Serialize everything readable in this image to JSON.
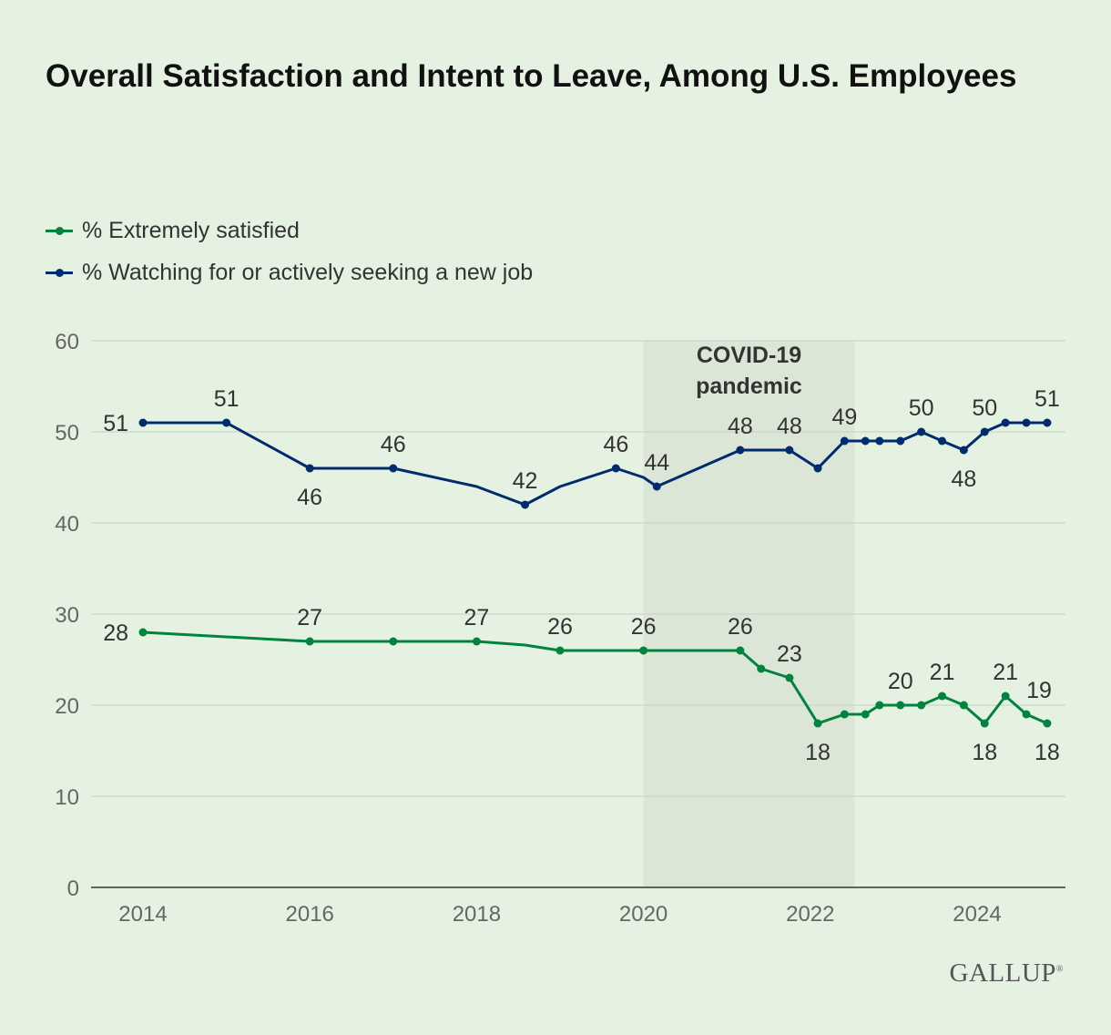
{
  "chart_data": {
    "type": "line",
    "title": "Overall Satisfaction and Intent to Leave, Among U.S. Employees",
    "xlabel": "",
    "ylabel": "",
    "xlim": [
      2013.4,
      2025.2
    ],
    "ylim": [
      0,
      60
    ],
    "x_ticks": [
      2014,
      2016,
      2018,
      2020,
      2022,
      2024
    ],
    "y_ticks": [
      0,
      10,
      20,
      30,
      40,
      50,
      60
    ],
    "grid": true,
    "legend_position": "top-left",
    "annotation": {
      "text_lines": [
        "COVID-19",
        "pandemic"
      ],
      "x_range": [
        2020,
        2022.53
      ],
      "color": "#dbe6d6"
    },
    "series": [
      {
        "name": "% Extremely satisfied",
        "color": "#00843d",
        "points": [
          {
            "x": 2014.0,
            "y": 28,
            "label": "left"
          },
          {
            "x": 2016.0,
            "y": 27,
            "label": "above"
          },
          {
            "x": 2017.0,
            "y": 27
          },
          {
            "x": 2018.0,
            "y": 27,
            "label": "above"
          },
          {
            "x": 2018.58,
            "y": 26.6,
            "marker": false
          },
          {
            "x": 2019.0,
            "y": 26,
            "label": "above"
          },
          {
            "x": 2020.0,
            "y": 26,
            "label": "above"
          },
          {
            "x": 2021.16,
            "y": 26,
            "label": "above"
          },
          {
            "x": 2021.41,
            "y": 24
          },
          {
            "x": 2021.75,
            "y": 23,
            "label": "above"
          },
          {
            "x": 2022.09,
            "y": 18,
            "label": "below"
          },
          {
            "x": 2022.41,
            "y": 19
          },
          {
            "x": 2022.66,
            "y": 19
          },
          {
            "x": 2022.83,
            "y": 20
          },
          {
            "x": 2023.08,
            "y": 20,
            "label": "above"
          },
          {
            "x": 2023.33,
            "y": 20
          },
          {
            "x": 2023.58,
            "y": 21,
            "label": "above"
          },
          {
            "x": 2023.84,
            "y": 20
          },
          {
            "x": 2024.09,
            "y": 18,
            "label": "below"
          },
          {
            "x": 2024.34,
            "y": 21,
            "label": "above"
          },
          {
            "x": 2024.59,
            "y": 19,
            "label": "above-right"
          },
          {
            "x": 2024.84,
            "y": 18,
            "label": "below"
          }
        ]
      },
      {
        "name": "% Watching for or actively seeking a new job",
        "color": "#002b6e",
        "points": [
          {
            "x": 2014.0,
            "y": 51,
            "label": "left"
          },
          {
            "x": 2015.0,
            "y": 51,
            "label": "above"
          },
          {
            "x": 2016.0,
            "y": 46,
            "label": "below"
          },
          {
            "x": 2017.0,
            "y": 46,
            "label": "above"
          },
          {
            "x": 2018.0,
            "y": 44,
            "marker": false
          },
          {
            "x": 2018.58,
            "y": 42,
            "label": "above"
          },
          {
            "x": 2019.0,
            "y": 44,
            "marker": false
          },
          {
            "x": 2019.67,
            "y": 46,
            "label": "above"
          },
          {
            "x": 2020.0,
            "y": 45,
            "marker": false
          },
          {
            "x": 2020.16,
            "y": 44,
            "label": "above"
          },
          {
            "x": 2021.16,
            "y": 48,
            "label": "above"
          },
          {
            "x": 2021.75,
            "y": 48,
            "label": "above"
          },
          {
            "x": 2022.09,
            "y": 46
          },
          {
            "x": 2022.41,
            "y": 49,
            "label": "above"
          },
          {
            "x": 2022.66,
            "y": 49
          },
          {
            "x": 2022.83,
            "y": 49
          },
          {
            "x": 2023.08,
            "y": 49
          },
          {
            "x": 2023.33,
            "y": 50,
            "label": "above"
          },
          {
            "x": 2023.58,
            "y": 49
          },
          {
            "x": 2023.84,
            "y": 48,
            "label": "below"
          },
          {
            "x": 2024.09,
            "y": 50,
            "label": "above"
          },
          {
            "x": 2024.34,
            "y": 51
          },
          {
            "x": 2024.59,
            "y": 51
          },
          {
            "x": 2024.84,
            "y": 51,
            "label": "above"
          }
        ]
      }
    ]
  },
  "branding": {
    "logo": "GALLUP"
  }
}
